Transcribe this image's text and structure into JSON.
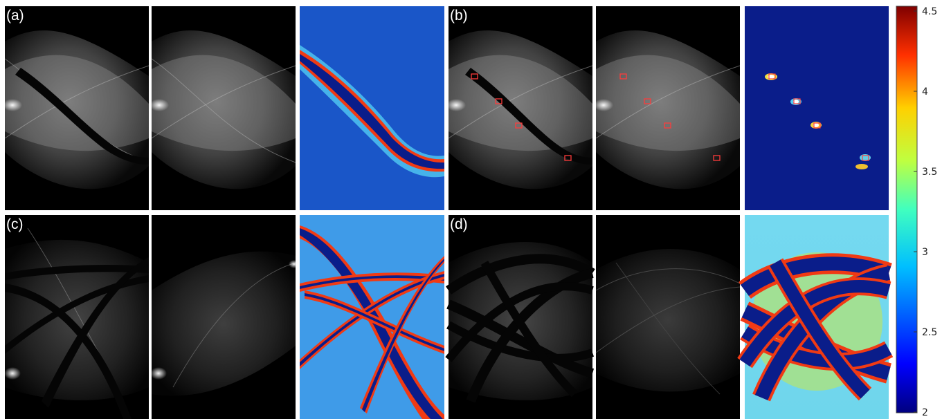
{
  "figure": {
    "panel_labels": [
      "(a)",
      "(b)",
      "(c)",
      "(d)"
    ],
    "colorbar": {
      "colormap": "jet",
      "min": 2,
      "max": 4.5,
      "tick_labels": [
        "4.5",
        "4",
        "3.5",
        "3",
        "2.5",
        "2"
      ]
    }
  },
  "colors": {
    "background": "#ffffff",
    "sinogram_background": "#000000",
    "marker": "#ff3b3b",
    "map_low": "#0a2a9c",
    "map_mid": "#35a3ef",
    "map_high": "#f01c0c"
  }
}
